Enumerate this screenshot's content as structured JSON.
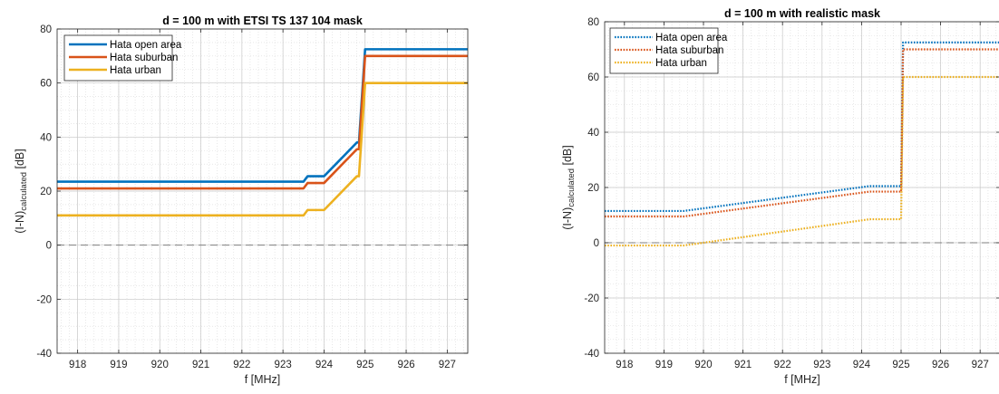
{
  "chart_data": [
    {
      "type": "line",
      "title": "d = 100 m with ETSI TS 137 104 mask",
      "xlabel": "f [MHz]",
      "ylabel_main": "(I-N)",
      "ylabel_sub": "calculated",
      "ylabel_unit": " [dB]",
      "xlim": [
        917.5,
        927.5
      ],
      "ylim": [
        -40,
        80
      ],
      "xticks": [
        918,
        919,
        920,
        921,
        922,
        923,
        924,
        925,
        926,
        927
      ],
      "yticks": [
        -40,
        -20,
        0,
        20,
        40,
        60,
        80
      ],
      "grid": true,
      "minor_grid": true,
      "legend_position": "top-left",
      "line_style": "solid",
      "reference_line": {
        "y": 0,
        "style": "dashed",
        "color": "#7f7f7f"
      },
      "series": [
        {
          "name": "Hata open area",
          "color": "#0072BD",
          "x": [
            917.5,
            923.5,
            923.6,
            924.0,
            924.8,
            924.85,
            925.0,
            927.5
          ],
          "y": [
            23.5,
            23.5,
            25.5,
            25.5,
            38.0,
            38.0,
            72.5,
            72.5
          ]
        },
        {
          "name": "Hata suburban",
          "color": "#D95319",
          "x": [
            917.5,
            923.5,
            923.6,
            924.0,
            924.8,
            924.85,
            925.0,
            927.5
          ],
          "y": [
            21.0,
            21.0,
            23.0,
            23.0,
            35.5,
            35.5,
            70.0,
            70.0
          ]
        },
        {
          "name": "Hata urban",
          "color": "#EDB120",
          "x": [
            917.5,
            923.5,
            923.6,
            924.0,
            924.8,
            924.85,
            925.0,
            927.5
          ],
          "y": [
            11.0,
            11.0,
            13.0,
            13.0,
            25.5,
            25.5,
            60.0,
            60.0
          ]
        }
      ]
    },
    {
      "type": "line",
      "title": "d = 100 m with realistic mask",
      "xlabel": "f [MHz]",
      "ylabel_main": "(I-N)",
      "ylabel_sub": "calculated",
      "ylabel_unit": " [dB]",
      "xlim": [
        917.5,
        927.5
      ],
      "ylim": [
        -40,
        80
      ],
      "xticks": [
        918,
        919,
        920,
        921,
        922,
        923,
        924,
        925,
        926,
        927
      ],
      "yticks": [
        -40,
        -20,
        0,
        20,
        40,
        60,
        80
      ],
      "grid": true,
      "minor_grid": true,
      "legend_position": "top-left",
      "line_style": "dotted",
      "reference_line": {
        "y": 0,
        "style": "dashed",
        "color": "#7f7f7f"
      },
      "series": [
        {
          "name": "Hata open area",
          "color": "#0072BD",
          "x": [
            917.5,
            919.5,
            924.2,
            925.0,
            925.05,
            927.5
          ],
          "y": [
            11.5,
            11.5,
            20.5,
            20.5,
            72.5,
            72.5
          ]
        },
        {
          "name": "Hata suburban",
          "color": "#D95319",
          "x": [
            917.5,
            919.5,
            924.2,
            925.0,
            925.05,
            927.5
          ],
          "y": [
            9.5,
            9.5,
            18.5,
            18.5,
            70.0,
            70.0
          ]
        },
        {
          "name": "Hata urban",
          "color": "#EDB120",
          "x": [
            917.5,
            919.5,
            924.2,
            925.0,
            925.05,
            927.5
          ],
          "y": [
            -1.0,
            -1.0,
            8.5,
            8.5,
            60.0,
            60.0
          ]
        }
      ]
    }
  ]
}
